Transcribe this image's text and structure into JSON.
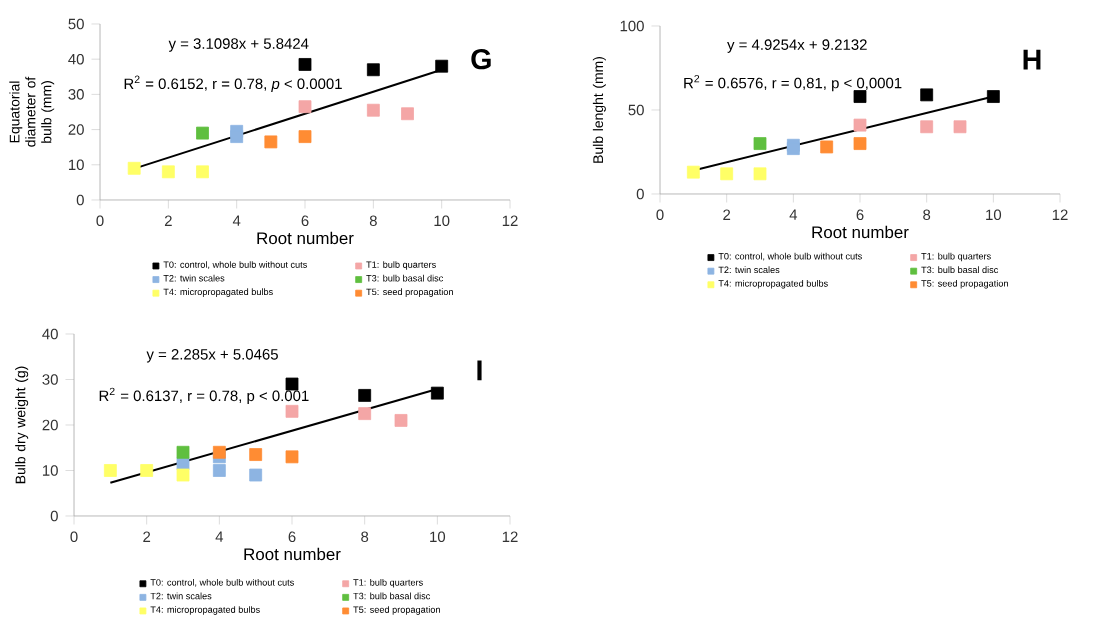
{
  "chart_data": [
    {
      "type": "scatter",
      "xlabel": "Root number",
      "ylabel": "Equatorial diameter of bulb (mm)",
      "xlim": [
        0,
        12
      ],
      "ylim": [
        0,
        50
      ],
      "xticks": [
        0,
        2,
        4,
        6,
        8,
        10,
        12
      ],
      "yticks": [
        0,
        10,
        20,
        30,
        40,
        50
      ],
      "marker": "square",
      "legend": "bottom",
      "annotations": [
        "y = 3.1098x + 5.8424",
        "R$^{2}$ = 0.6152, r = 0.78, *p* < 0.0001",
        "G"
      ],
      "series": [
        {
          "name": "T0: control, whole bulb without cuts",
          "color": "#000000",
          "x": [
            6,
            8,
            10
          ],
          "values": [
            38.5,
            37,
            38
          ]
        },
        {
          "name": "T1: bulb quarters",
          "color": "#f4a6a6",
          "x": [
            6,
            8,
            9
          ],
          "values": [
            26.5,
            25.5,
            24.5
          ]
        },
        {
          "name": "T2: twin scales",
          "color": "#8db4e2",
          "x": [
            4,
            4
          ],
          "values": [
            19.5,
            18
          ]
        },
        {
          "name": "T3: bulb basal disc",
          "color": "#5fbf3f",
          "x": [
            3
          ],
          "values": [
            19
          ]
        },
        {
          "name": "T4: micropropagated bulbs",
          "color": "#ffff66",
          "x": [
            1,
            2,
            3
          ],
          "values": [
            9,
            8,
            8
          ]
        },
        {
          "name": "T5: seed propagation",
          "color": "#ff8c33",
          "x": [
            5,
            6
          ],
          "values": [
            16.5,
            18
          ]
        },
        {
          "type": "line",
          "marker": "none",
          "color": "#000000",
          "x": [
            1,
            10
          ],
          "values": [
            8.9,
            37
          ]
        }
      ]
    },
    {
      "type": "scatter",
      "xlabel": "Root number",
      "ylabel": "Bulb lenght (mm)",
      "xlim": [
        0,
        12
      ],
      "ylim": [
        0,
        100
      ],
      "xticks": [
        0,
        2,
        4,
        6,
        8,
        10,
        12
      ],
      "yticks": [
        0,
        50,
        100
      ],
      "marker": "square",
      "legend": "bottom",
      "annotations": [
        "y = 4.9254x + 9.2132",
        "R$^{2}$ = 0.6576, r = 0,81, p < 0,0001",
        "H"
      ],
      "series": [
        {
          "name": "T0: control, whole bulb without cuts",
          "color": "#000000",
          "x": [
            6,
            8,
            10
          ],
          "values": [
            58,
            59,
            58
          ]
        },
        {
          "name": "T1: bulb quarters",
          "color": "#f4a6a6",
          "x": [
            6,
            8,
            9
          ],
          "values": [
            41,
            40,
            40
          ]
        },
        {
          "name": "T2: twin scales",
          "color": "#8db4e2",
          "x": [
            4,
            4
          ],
          "values": [
            29,
            27
          ]
        },
        {
          "name": "T3: bulb basal disc",
          "color": "#5fbf3f",
          "x": [
            3
          ],
          "values": [
            30
          ]
        },
        {
          "name": "T4: micropropagated bulbs",
          "color": "#ffff66",
          "x": [
            1,
            2,
            3
          ],
          "values": [
            13,
            12,
            12
          ]
        },
        {
          "name": "T5: seed propagation",
          "color": "#ff8c33",
          "x": [
            5,
            6
          ],
          "values": [
            28,
            30
          ]
        },
        {
          "type": "line",
          "marker": "none",
          "color": "#000000",
          "x": [
            1,
            10
          ],
          "values": [
            14,
            58
          ]
        }
      ]
    },
    {
      "type": "scatter",
      "xlabel": "Root number",
      "ylabel": "Bulb dry weight (g)",
      "xlim": [
        0,
        12
      ],
      "ylim": [
        0,
        40
      ],
      "xticks": [
        0,
        2,
        4,
        6,
        8,
        10,
        12
      ],
      "yticks": [
        0,
        10,
        20,
        30,
        40
      ],
      "marker": "square",
      "legend": "bottom",
      "annotations": [
        "y = 2.285x + 5.0465",
        "R$^{2}$ = 0.6137, r = 0.78, p < 0.001",
        "I"
      ],
      "series": [
        {
          "name": "T0: control, whole bulb without cuts",
          "color": "#000000",
          "x": [
            6,
            8,
            10
          ],
          "values": [
            29,
            26.5,
            27
          ]
        },
        {
          "name": "T1: bulb quarters",
          "color": "#f4a6a6",
          "x": [
            6,
            8,
            9
          ],
          "values": [
            23,
            22.5,
            21
          ]
        },
        {
          "name": "T2: twin scales",
          "color": "#8db4e2",
          "x": [
            3,
            4,
            4,
            5
          ],
          "values": [
            11.5,
            13,
            10,
            9
          ]
        },
        {
          "name": "T3: bulb basal disc",
          "color": "#5fbf3f",
          "x": [
            3
          ],
          "values": [
            14
          ]
        },
        {
          "name": "T4: micropropagated bulbs",
          "color": "#ffff66",
          "x": [
            1,
            2,
            3
          ],
          "values": [
            10,
            10,
            9
          ]
        },
        {
          "name": "T5: seed propagation",
          "color": "#ff8c33",
          "x": [
            4,
            5,
            6
          ],
          "values": [
            14,
            13.5,
            13
          ]
        },
        {
          "type": "line",
          "marker": "none",
          "color": "#000000",
          "x": [
            1,
            10
          ],
          "values": [
            7.3,
            27.9
          ]
        }
      ]
    }
  ]
}
